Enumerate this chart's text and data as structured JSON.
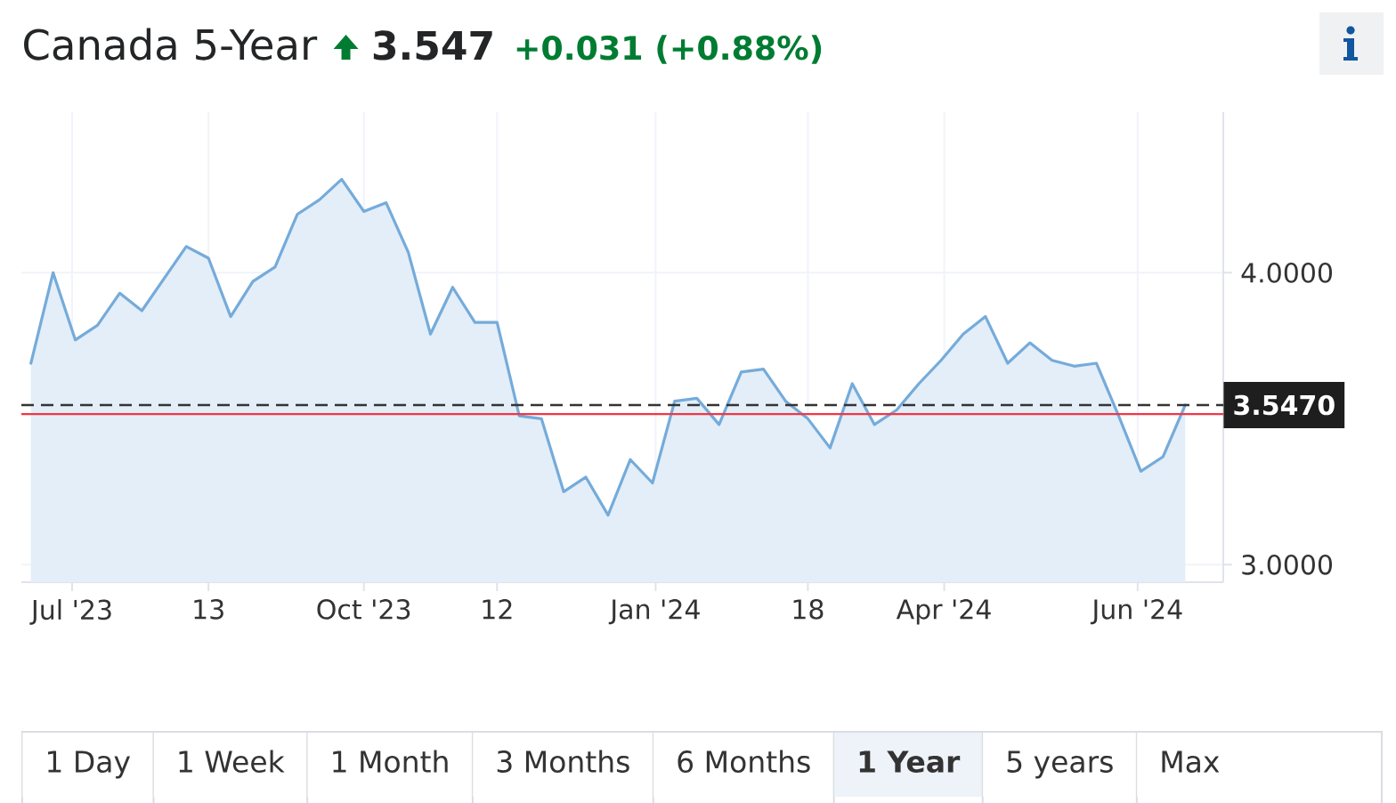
{
  "chart_data": {
    "type": "area",
    "title": "Canada 5-Year",
    "annotations": [
      "3.547",
      "+0.031 (+0.88%)",
      "1 Day",
      "1 Week",
      "1 Month",
      "3 Months",
      "6 Months",
      "1 Year",
      "5 years",
      "Max"
    ],
    "x": [
      "2023-06-18",
      "2023-06-25",
      "2023-07-02",
      "2023-07-09",
      "2023-07-16",
      "2023-07-23",
      "2023-07-30",
      "2023-08-06",
      "2023-08-13",
      "2023-08-20",
      "2023-08-27",
      "2023-09-03",
      "2023-09-10",
      "2023-09-17",
      "2023-09-24",
      "2023-10-01",
      "2023-10-08",
      "2023-10-15",
      "2023-10-22",
      "2023-10-29",
      "2023-11-05",
      "2023-11-12",
      "2023-11-19",
      "2023-11-26",
      "2023-12-03",
      "2023-12-10",
      "2023-12-17",
      "2023-12-24",
      "2023-12-31",
      "2024-01-07",
      "2024-01-14",
      "2024-01-21",
      "2024-01-28",
      "2024-02-04",
      "2024-02-11",
      "2024-02-18",
      "2024-02-25",
      "2024-03-03",
      "2024-03-10",
      "2024-03-17",
      "2024-03-24",
      "2024-03-31",
      "2024-04-07",
      "2024-04-14",
      "2024-04-21",
      "2024-04-28",
      "2024-05-05",
      "2024-05-12",
      "2024-05-19",
      "2024-05-26",
      "2024-06-02",
      "2024-06-09",
      "2024-06-16"
    ],
    "values": [
      3.69,
      4.0,
      3.77,
      3.82,
      3.93,
      3.87,
      3.98,
      4.09,
      4.05,
      3.85,
      3.97,
      4.02,
      4.2,
      4.25,
      4.32,
      4.21,
      4.24,
      4.07,
      3.79,
      3.95,
      3.83,
      3.83,
      3.51,
      3.5,
      3.25,
      3.3,
      3.17,
      3.36,
      3.28,
      3.56,
      3.57,
      3.48,
      3.66,
      3.67,
      3.56,
      3.5,
      3.4,
      3.62,
      3.48,
      3.53,
      3.62,
      3.7,
      3.79,
      3.85,
      3.69,
      3.76,
      3.7,
      3.68,
      3.69,
      3.51,
      3.32,
      3.37,
      3.547
    ],
    "color": "#75abda",
    "marker": "none",
    "grid": true,
    "xlim": [
      "2023-06-15",
      "2024-06-28"
    ],
    "ylim": [
      2.94,
      4.55
    ],
    "xticks": [
      {
        "value": "2023-07-01",
        "label": "Jul '23"
      },
      {
        "value": "2023-08-13",
        "label": "13"
      },
      {
        "value": "2023-10-01",
        "label": "Oct '23"
      },
      {
        "value": "2023-11-12",
        "label": "12"
      },
      {
        "value": "2024-01-01",
        "label": "Jan '24"
      },
      {
        "value": "2024-02-18",
        "label": "18"
      },
      {
        "value": "2024-04-01",
        "label": "Apr '24"
      },
      {
        "value": "2024-06-01",
        "label": "Jun '24"
      }
    ],
    "yticks": [
      {
        "value": 3,
        "label": "3.0000"
      },
      {
        "value": 4,
        "label": "4.0000"
      }
    ],
    "ref_lines": [
      {
        "axis": "y",
        "value": 3.547,
        "label": "3.5470",
        "color": "#333333",
        "line_style": "dashed"
      },
      {
        "axis": "y",
        "value": 3.516,
        "color": "#f23645",
        "line_style": "solid"
      }
    ]
  }
}
